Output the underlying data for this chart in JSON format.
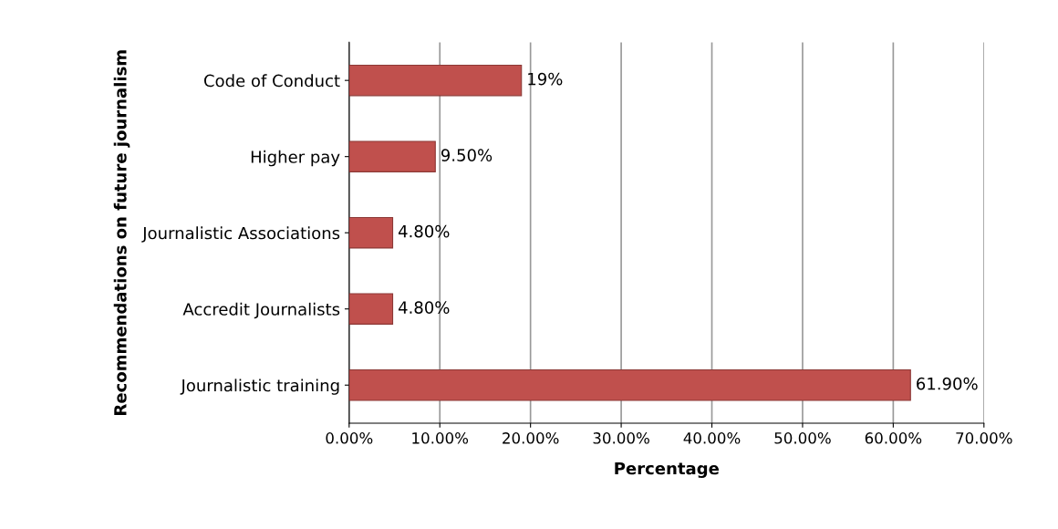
{
  "chart_data": {
    "type": "bar",
    "orientation": "horizontal",
    "xlabel": "Percentage",
    "ylabel": "Recommendations on future journalism",
    "categories": [
      "Code of Conduct",
      "Higher pay",
      "Journalistic Associations",
      "Accredit Journalists",
      "Journalistic training"
    ],
    "values": [
      19,
      9.5,
      4.8,
      4.8,
      61.9
    ],
    "value_labels": [
      "19%",
      "9.50%",
      "4.80%",
      "4.80%",
      "61.90%"
    ],
    "color": "#c0504d",
    "xlim": [
      0,
      70
    ],
    "xticks": [
      {
        "value": 0,
        "label": "0.00%"
      },
      {
        "value": 10,
        "label": "10.00%"
      },
      {
        "value": 20,
        "label": "20.00%"
      },
      {
        "value": 30,
        "label": "30.00%"
      },
      {
        "value": 40,
        "label": "40.00%"
      },
      {
        "value": 50,
        "label": "50.00%"
      },
      {
        "value": 60,
        "label": "60.00%"
      },
      {
        "value": 70,
        "label": "70.00%"
      }
    ],
    "grid": "x",
    "legend": false
  }
}
